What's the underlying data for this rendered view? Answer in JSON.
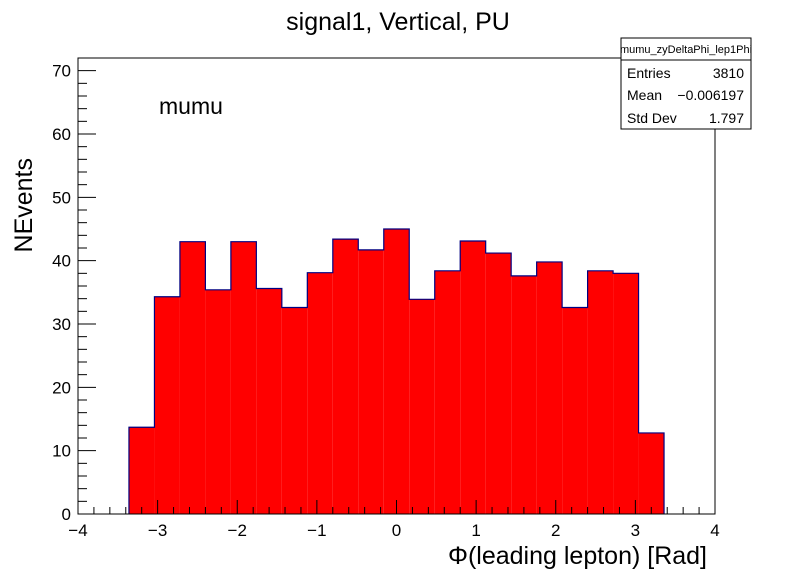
{
  "chart_data": {
    "type": "bar",
    "title": "signal1, Vertical, PU",
    "xlabel": "Φ(leading lepton) [Rad]",
    "ylabel": "NEvents",
    "xlim": [
      -4,
      4
    ],
    "ylim": [
      0,
      72
    ],
    "x_ticks": [
      "−4",
      "−3",
      "−2",
      "−1",
      "0",
      "1",
      "2",
      "3",
      "4"
    ],
    "y_ticks": [
      "0",
      "10",
      "20",
      "30",
      "40",
      "50",
      "60",
      "70"
    ],
    "annotation": "mumu",
    "bin_edges": [
      -3.36,
      -3.04,
      -2.72,
      -2.4,
      -2.08,
      -1.76,
      -1.44,
      -1.12,
      -0.8,
      -0.48,
      -0.16,
      0.16,
      0.48,
      0.8,
      1.12,
      1.44,
      1.76,
      2.08,
      2.4,
      2.72,
      3.04,
      3.36
    ],
    "values": [
      13.7,
      34.3,
      43.0,
      35.4,
      43.0,
      35.6,
      32.6,
      38.1,
      43.4,
      41.7,
      45.0,
      33.9,
      38.4,
      43.1,
      41.2,
      37.6,
      39.8,
      32.6,
      38.4,
      38.0,
      12.8
    ],
    "fill_color": "#ff0000",
    "line_color": "#000080",
    "grid": false,
    "legend_position": "top-right"
  },
  "stats_box": {
    "name": "mumu_zyDeltaPhi_lep1Phi",
    "rows": [
      {
        "label": "Entries",
        "value": "3810"
      },
      {
        "label": "Mean",
        "value": "−0.006197"
      },
      {
        "label": "Std Dev",
        "value": "1.797"
      }
    ]
  }
}
